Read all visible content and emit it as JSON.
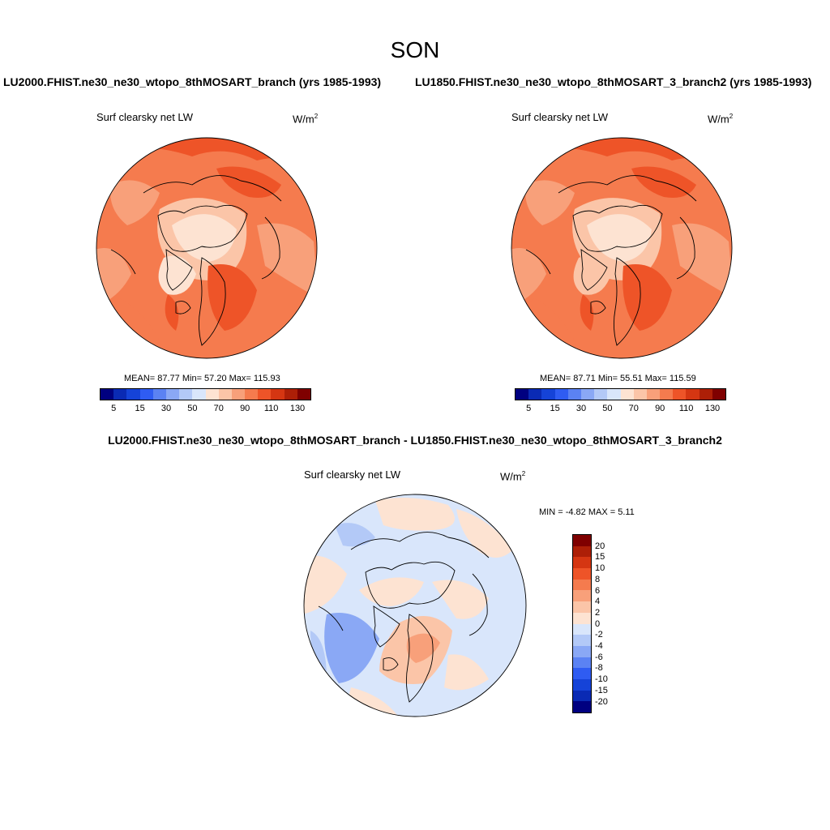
{
  "season": "SON",
  "panels": [
    {
      "case": "LU2000.FHIST.ne30_ne30_wtopo_8thMOSART_branch (yrs 1985-1993)",
      "variable": "Surf clearsky net LW",
      "unit_base": "W/m",
      "unit_exp": "2",
      "stats": "MEAN=  87.77  Min=  57.20  Max= 115.93"
    },
    {
      "case": "LU1850.FHIST.ne30_ne30_wtopo_8thMOSART_3_branch2 (yrs 1985-1993)",
      "variable": "Surf clearsky net LW",
      "unit_base": "W/m",
      "unit_exp": "2",
      "stats": "MEAN=  87.71  Min=  55.51  Max= 115.59"
    }
  ],
  "diff_panel": {
    "case": "LU2000.FHIST.ne30_ne30_wtopo_8thMOSART_branch - LU1850.FHIST.ne30_ne30_wtopo_8thMOSART_3_branch2",
    "variable": "Surf clearsky net LW",
    "unit_base": "W/m",
    "unit_exp": "2",
    "stats": "MIN =  -4.82 MAX =   5.11"
  },
  "colorbar_abs": {
    "colors": [
      "#000080",
      "#0a2ab4",
      "#1543d8",
      "#2f5cf2",
      "#5b82f3",
      "#8aa8f5",
      "#b3c9f7",
      "#d9e6fb",
      "#fde3d2",
      "#fbc5a8",
      "#f8a07a",
      "#f57b4e",
      "#ee5428",
      "#d53612",
      "#ad1f07",
      "#7f0000"
    ],
    "labels": [
      "5",
      "15",
      "30",
      "50",
      "70",
      "90",
      "110",
      "130"
    ]
  },
  "colorbar_diff": {
    "colors": [
      "#7f0000",
      "#ad1f07",
      "#d53612",
      "#ee5428",
      "#f57b4e",
      "#f8a07a",
      "#fbc5a8",
      "#fde3d2",
      "#d9e6fb",
      "#b3c9f7",
      "#8aa8f5",
      "#5b82f3",
      "#2f5cf2",
      "#1543d8",
      "#0a2ab4",
      "#000080"
    ],
    "labels": [
      "20",
      "15",
      "10",
      "8",
      "6",
      "4",
      "2",
      "0",
      "-2",
      "-4",
      "-6",
      "-8",
      "-10",
      "-15",
      "-20"
    ]
  }
}
